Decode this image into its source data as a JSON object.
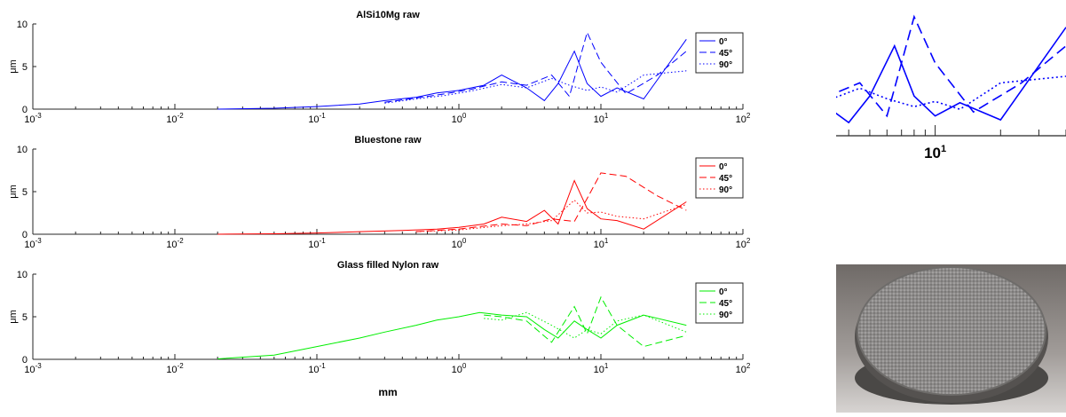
{
  "xlabel": "mm",
  "ylabel": "μm",
  "zoom_tick_label": "10",
  "zoom_tick_exp": "1",
  "legend_labels": [
    "0°",
    "45°",
    "90°"
  ],
  "photo": {
    "subject": "gray-3d-printed-disk-sample"
  },
  "chart_data": [
    {
      "type": "line",
      "title": "AlSi10Mg raw",
      "xscale": "log",
      "xlim": [
        0.001,
        100
      ],
      "ylim": [
        0,
        10
      ],
      "yticks": [
        0,
        5,
        10
      ],
      "xtick_labels": [
        "10^-3",
        "10^-2",
        "10^-1",
        "10^0",
        "10^1",
        "10^2"
      ],
      "color": "#0000ff",
      "legend": "top-right",
      "grid": false,
      "series": [
        {
          "name": "0°",
          "style": "solid",
          "x": [
            0.02,
            0.05,
            0.1,
            0.2,
            0.3,
            0.5,
            0.7,
            1.0,
            1.5,
            2.0,
            3.0,
            4.0,
            5.0,
            6.5,
            8.0,
            10.0,
            13.0,
            20.0,
            40.0
          ],
          "y": [
            0.0,
            0.1,
            0.3,
            0.6,
            1.0,
            1.4,
            1.9,
            2.2,
            2.8,
            4.0,
            2.5,
            1.0,
            3.0,
            6.8,
            3.0,
            1.5,
            2.5,
            1.2,
            8.2
          ]
        },
        {
          "name": "45°",
          "style": "dashed",
          "x": [
            0.3,
            0.5,
            0.8,
            1.2,
            2.0,
            3.0,
            4.5,
            6.0,
            8.0,
            10.0,
            15.0,
            25.0,
            40.0
          ],
          "y": [
            0.8,
            1.3,
            1.8,
            2.3,
            3.2,
            2.8,
            4.0,
            1.5,
            9.0,
            5.5,
            1.8,
            4.0,
            6.8
          ]
        },
        {
          "name": "90°",
          "style": "dotted",
          "x": [
            0.3,
            0.5,
            0.8,
            1.2,
            2.0,
            3.0,
            4.5,
            6.0,
            8.0,
            10.0,
            13.0,
            20.0,
            40.0
          ],
          "y": [
            0.7,
            1.2,
            1.6,
            2.1,
            2.9,
            2.5,
            3.6,
            2.8,
            2.2,
            2.6,
            2.0,
            4.0,
            4.5
          ]
        }
      ]
    },
    {
      "type": "line",
      "title": "Bluestone raw",
      "xscale": "log",
      "xlim": [
        0.001,
        100
      ],
      "ylim": [
        0,
        10
      ],
      "yticks": [
        0,
        5,
        10
      ],
      "xtick_labels": [
        "10^-3",
        "10^-2",
        "10^-1",
        "10^0",
        "10^1",
        "10^2"
      ],
      "color": "#ff0000",
      "legend": "top-right",
      "grid": false,
      "series": [
        {
          "name": "0°",
          "style": "solid",
          "x": [
            0.02,
            0.05,
            0.1,
            0.2,
            0.4,
            0.7,
            1.0,
            1.5,
            2.0,
            3.0,
            4.0,
            5.0,
            6.5,
            8.0,
            10.0,
            13.0,
            20.0,
            40.0
          ],
          "y": [
            0.0,
            0.05,
            0.15,
            0.3,
            0.45,
            0.6,
            0.8,
            1.2,
            2.0,
            1.5,
            2.8,
            1.2,
            6.3,
            3.0,
            1.8,
            1.6,
            0.6,
            3.8
          ]
        },
        {
          "name": "45°",
          "style": "dashed",
          "x": [
            0.5,
            1.0,
            2.0,
            3.0,
            4.5,
            6.5,
            8.0,
            10.0,
            15.0,
            25.0,
            40.0
          ],
          "y": [
            0.3,
            0.6,
            1.2,
            1.0,
            1.8,
            1.5,
            4.2,
            7.2,
            6.8,
            4.5,
            2.8
          ]
        },
        {
          "name": "90°",
          "style": "dotted",
          "x": [
            0.5,
            1.0,
            2.0,
            3.0,
            4.5,
            6.5,
            8.0,
            10.0,
            13.0,
            20.0,
            40.0
          ],
          "y": [
            0.3,
            0.5,
            1.0,
            1.2,
            1.6,
            4.0,
            2.5,
            2.6,
            2.1,
            1.8,
            3.5
          ]
        }
      ]
    },
    {
      "type": "line",
      "title": "Glass filled Nylon raw",
      "xscale": "log",
      "xlim": [
        0.001,
        100
      ],
      "ylim": [
        0,
        10
      ],
      "yticks": [
        0,
        5,
        10
      ],
      "xtick_labels": [
        "10^-3",
        "10^-2",
        "10^-1",
        "10^0",
        "10^1",
        "10^2"
      ],
      "color": "#00ee00",
      "legend": "top-right",
      "grid": false,
      "series": [
        {
          "name": "0°",
          "style": "solid",
          "x": [
            0.02,
            0.05,
            0.1,
            0.2,
            0.3,
            0.5,
            0.7,
            1.0,
            1.4,
            2.0,
            3.0,
            4.0,
            5.0,
            6.5,
            8.0,
            10.0,
            13.0,
            20.0,
            40.0
          ],
          "y": [
            0.05,
            0.5,
            1.5,
            2.5,
            3.2,
            4.0,
            4.6,
            5.0,
            5.5,
            5.2,
            5.0,
            3.5,
            2.5,
            4.5,
            3.5,
            2.5,
            4.0,
            5.2,
            4.0
          ]
        },
        {
          "name": "45°",
          "style": "dashed",
          "x": [
            1.5,
            2.0,
            3.0,
            4.5,
            6.5,
            8.0,
            10.0,
            13.0,
            20.0,
            40.0
          ],
          "y": [
            5.2,
            5.0,
            4.5,
            2.0,
            6.2,
            3.0,
            7.3,
            4.0,
            1.5,
            2.8
          ]
        },
        {
          "name": "90°",
          "style": "dotted",
          "x": [
            1.5,
            2.0,
            3.0,
            4.5,
            6.5,
            8.0,
            10.0,
            13.0,
            20.0,
            40.0
          ],
          "y": [
            4.8,
            4.6,
            5.5,
            4.0,
            2.5,
            3.5,
            3.0,
            4.5,
            5.2,
            3.2
          ]
        }
      ]
    }
  ]
}
